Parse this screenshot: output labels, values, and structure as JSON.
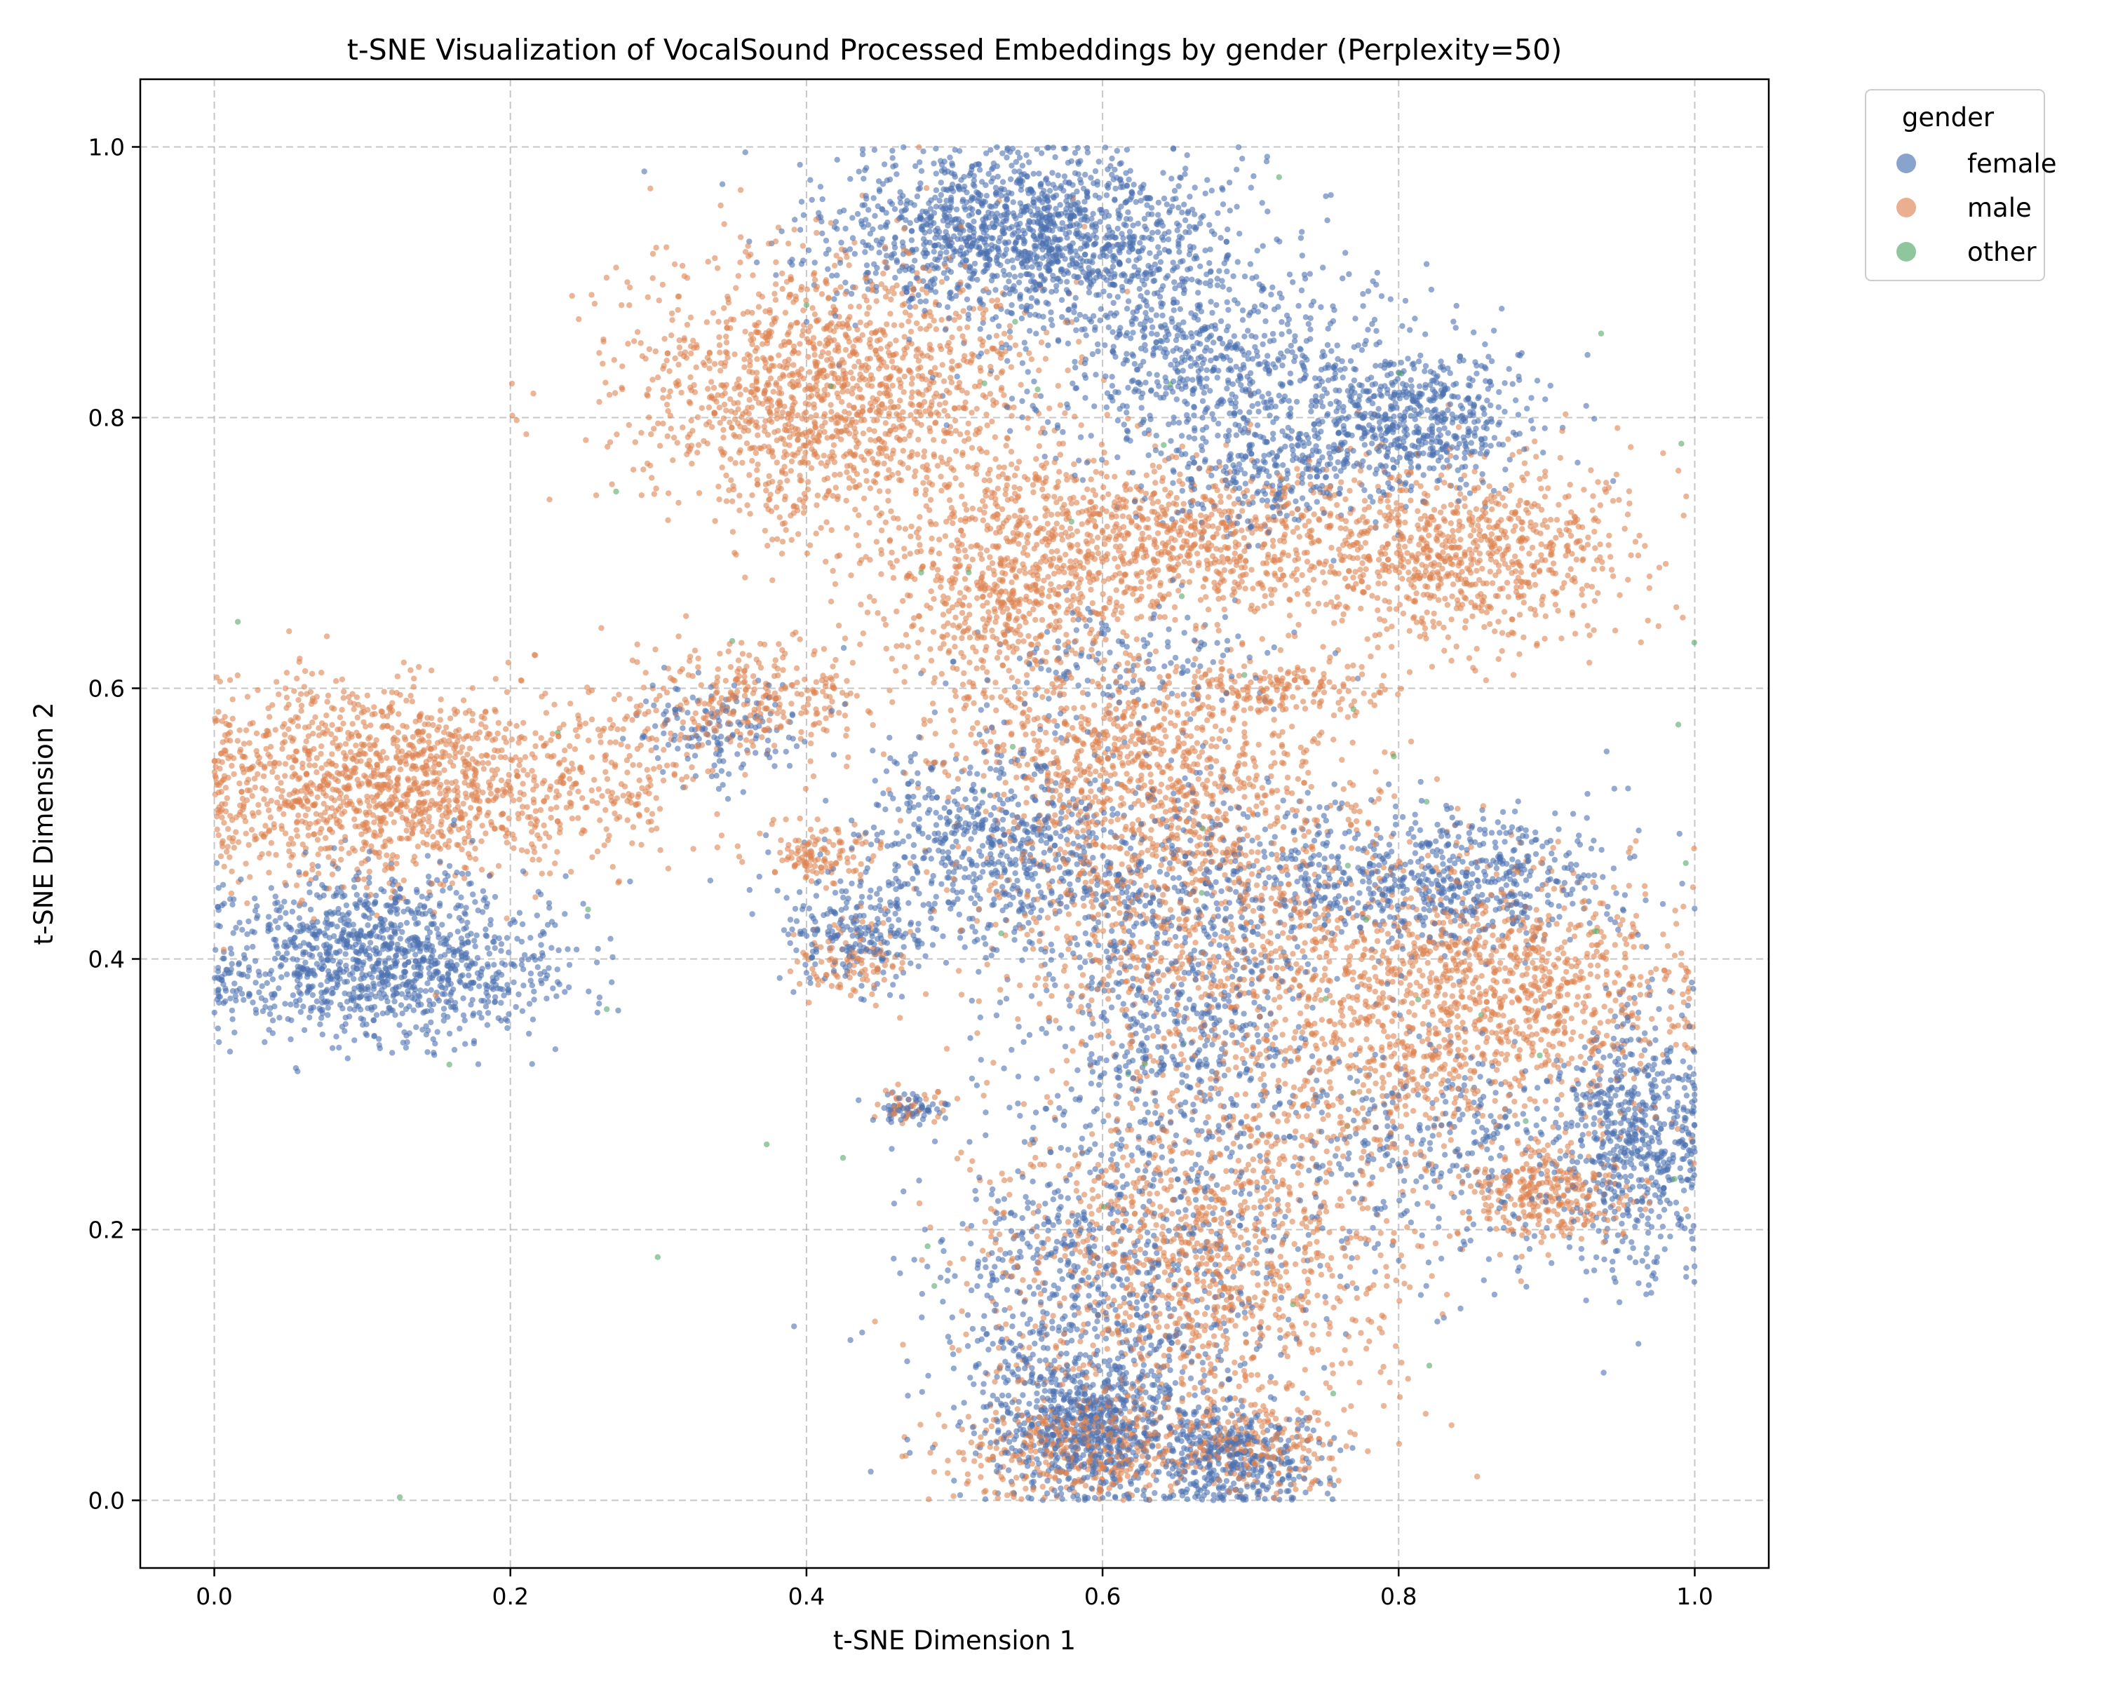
{
  "chart_data": {
    "type": "scatter",
    "title": "t-SNE Visualization of VocalSound Processed Embeddings by gender (Perplexity=50)",
    "xlabel": "t-SNE Dimension 1",
    "ylabel": "t-SNE Dimension 2",
    "xlim": [
      -0.05,
      1.05
    ],
    "ylim": [
      -0.05,
      1.05
    ],
    "xticks": [
      "0.0",
      "0.2",
      "0.4",
      "0.6",
      "0.8",
      "1.0"
    ],
    "yticks": [
      "0.0",
      "0.2",
      "0.4",
      "0.6",
      "0.8",
      "1.0"
    ],
    "grid": true,
    "legend": {
      "title": "gender",
      "placement": "outside upper right",
      "entries": [
        "female",
        "male",
        "other"
      ]
    },
    "colors": {
      "female": "#4c72b0",
      "male": "#dd8452",
      "other": "#55a868"
    },
    "clusters": [
      {
        "series": "female",
        "cx": 0.55,
        "cy": 0.935,
        "sx": 0.065,
        "sy": 0.032,
        "n": 1500
      },
      {
        "series": "female",
        "cx": 0.67,
        "cy": 0.84,
        "sx": 0.06,
        "sy": 0.04,
        "n": 700
      },
      {
        "series": "female",
        "cx": 0.81,
        "cy": 0.8,
        "sx": 0.04,
        "sy": 0.025,
        "n": 600
      },
      {
        "series": "female",
        "cx": 0.71,
        "cy": 0.76,
        "sx": 0.035,
        "sy": 0.025,
        "n": 250
      },
      {
        "series": "male",
        "cx": 0.42,
        "cy": 0.82,
        "sx": 0.07,
        "sy": 0.05,
        "n": 1500
      },
      {
        "series": "male",
        "cx": 0.62,
        "cy": 0.71,
        "sx": 0.09,
        "sy": 0.03,
        "n": 1100
      },
      {
        "series": "male",
        "cx": 0.84,
        "cy": 0.7,
        "sx": 0.06,
        "sy": 0.035,
        "n": 800
      },
      {
        "series": "male",
        "cx": 0.53,
        "cy": 0.65,
        "sx": 0.04,
        "sy": 0.03,
        "n": 350
      },
      {
        "series": "male",
        "cx": 0.11,
        "cy": 0.53,
        "sx": 0.065,
        "sy": 0.035,
        "n": 1300
      },
      {
        "series": "female",
        "cx": 0.11,
        "cy": 0.4,
        "sx": 0.06,
        "sy": 0.03,
        "n": 1200
      },
      {
        "series": "male",
        "cx": 0.26,
        "cy": 0.53,
        "sx": 0.04,
        "sy": 0.03,
        "n": 200
      },
      {
        "series": "male",
        "cx": 0.36,
        "cy": 0.59,
        "sx": 0.04,
        "sy": 0.02,
        "n": 300
      },
      {
        "series": "female",
        "cx": 0.34,
        "cy": 0.57,
        "sx": 0.03,
        "sy": 0.02,
        "n": 150
      },
      {
        "series": "male",
        "cx": 0.41,
        "cy": 0.48,
        "sx": 0.02,
        "sy": 0.012,
        "n": 120
      },
      {
        "series": "female",
        "cx": 0.43,
        "cy": 0.42,
        "sx": 0.025,
        "sy": 0.02,
        "n": 200
      },
      {
        "series": "male",
        "cx": 0.43,
        "cy": 0.4,
        "sx": 0.02,
        "sy": 0.015,
        "n": 100
      },
      {
        "series": "female",
        "cx": 0.47,
        "cy": 0.29,
        "sx": 0.012,
        "sy": 0.006,
        "n": 60
      },
      {
        "series": "male",
        "cx": 0.47,
        "cy": 0.29,
        "sx": 0.012,
        "sy": 0.006,
        "n": 40
      },
      {
        "series": "male",
        "cx": 0.62,
        "cy": 0.55,
        "sx": 0.06,
        "sy": 0.04,
        "n": 700
      },
      {
        "series": "female",
        "cx": 0.53,
        "cy": 0.48,
        "sx": 0.05,
        "sy": 0.04,
        "n": 700
      },
      {
        "series": "male",
        "cx": 0.66,
        "cy": 0.45,
        "sx": 0.08,
        "sy": 0.06,
        "n": 900
      },
      {
        "series": "female",
        "cx": 0.65,
        "cy": 0.38,
        "sx": 0.05,
        "sy": 0.08,
        "n": 800
      },
      {
        "series": "female",
        "cx": 0.82,
        "cy": 0.46,
        "sx": 0.07,
        "sy": 0.025,
        "n": 700
      },
      {
        "series": "male",
        "cx": 0.88,
        "cy": 0.38,
        "sx": 0.06,
        "sy": 0.04,
        "n": 800
      },
      {
        "series": "male",
        "cx": 0.78,
        "cy": 0.33,
        "sx": 0.08,
        "sy": 0.06,
        "n": 700
      },
      {
        "series": "female",
        "cx": 0.96,
        "cy": 0.27,
        "sx": 0.025,
        "sy": 0.05,
        "n": 600
      },
      {
        "series": "male",
        "cx": 0.9,
        "cy": 0.23,
        "sx": 0.03,
        "sy": 0.02,
        "n": 300
      },
      {
        "series": "female",
        "cx": 0.83,
        "cy": 0.26,
        "sx": 0.06,
        "sy": 0.05,
        "n": 400
      },
      {
        "series": "male",
        "cx": 0.66,
        "cy": 0.17,
        "sx": 0.07,
        "sy": 0.06,
        "n": 1100
      },
      {
        "series": "female",
        "cx": 0.6,
        "cy": 0.15,
        "sx": 0.06,
        "sy": 0.07,
        "n": 900
      },
      {
        "series": "female",
        "cx": 0.59,
        "cy": 0.05,
        "sx": 0.03,
        "sy": 0.025,
        "n": 600
      },
      {
        "series": "male",
        "cx": 0.58,
        "cy": 0.04,
        "sx": 0.04,
        "sy": 0.02,
        "n": 400
      },
      {
        "series": "female",
        "cx": 0.69,
        "cy": 0.03,
        "sx": 0.03,
        "sy": 0.02,
        "n": 400
      },
      {
        "series": "male",
        "cx": 0.7,
        "cy": 0.04,
        "sx": 0.03,
        "sy": 0.015,
        "n": 200
      },
      {
        "series": "male",
        "cx": 0.72,
        "cy": 0.6,
        "sx": 0.04,
        "sy": 0.01,
        "n": 150
      },
      {
        "series": "female",
        "cx": 0.62,
        "cy": 0.62,
        "sx": 0.05,
        "sy": 0.02,
        "n": 150
      },
      {
        "series": "other",
        "cx": 0.6,
        "cy": 0.5,
        "sx": 0.25,
        "sy": 0.25,
        "n": 60
      }
    ]
  }
}
